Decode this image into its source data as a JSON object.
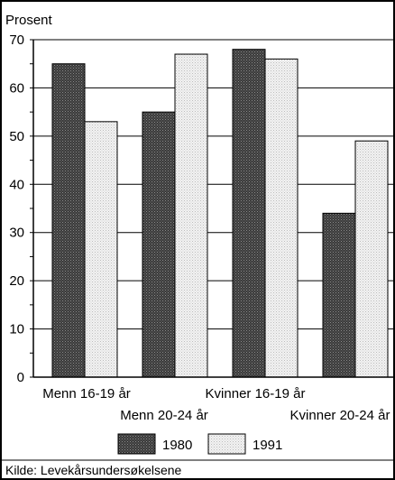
{
  "chart_data": {
    "type": "bar",
    "ylabel": "Prosent",
    "ylim": [
      0,
      70
    ],
    "yticks": [
      0,
      10,
      20,
      30,
      40,
      50,
      60,
      70
    ],
    "grid": true,
    "categories": [
      "Menn 16-19 år",
      "Menn 20-24 år",
      "Kvinner 16-19 år",
      "Kvinner 20-24 år"
    ],
    "series": [
      {
        "name": "1980",
        "values": [
          65,
          55,
          68,
          34
        ],
        "color": "#4a4a4a"
      },
      {
        "name": "1991",
        "values": [
          53,
          67,
          66,
          49
        ],
        "color": "#e4e4e4"
      }
    ],
    "legend_position": "bottom",
    "source": "Kilde: Levekårsundersøkelsene"
  }
}
